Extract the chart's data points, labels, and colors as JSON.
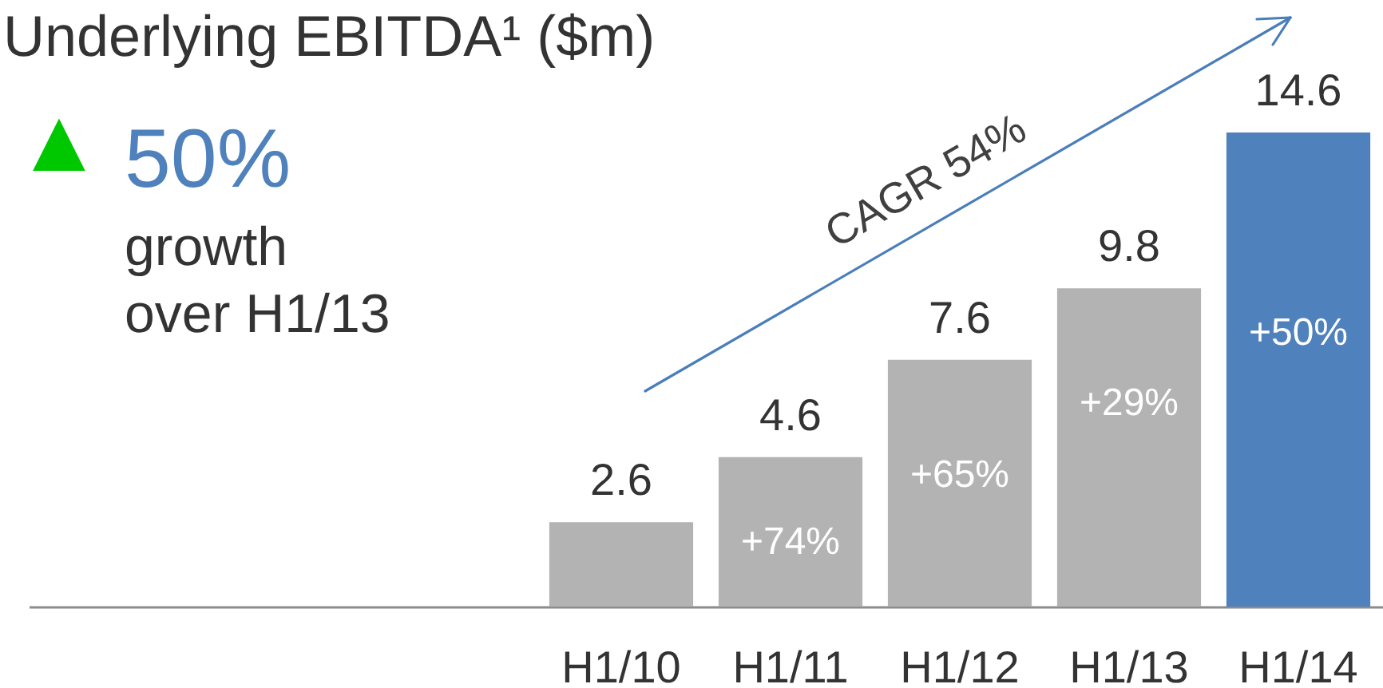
{
  "chart_data": {
    "type": "bar",
    "title": "Underlying EBITDA¹ ($m)",
    "categories": [
      "H1/10",
      "H1/11",
      "H1/12",
      "H1/13",
      "H1/14"
    ],
    "values": [
      2.6,
      4.6,
      7.6,
      9.8,
      14.6
    ],
    "colors": [
      "#b3b3b3",
      "#b3b3b3",
      "#b3b3b3",
      "#b3b3b3",
      "#4f81bd"
    ],
    "data_labels": true,
    "annotations": [
      "▲",
      "50%",
      "growth",
      "over H1/13",
      "CAGR 54%",
      "+74%",
      "+65%",
      "+29%",
      "+50%"
    ]
  }
}
